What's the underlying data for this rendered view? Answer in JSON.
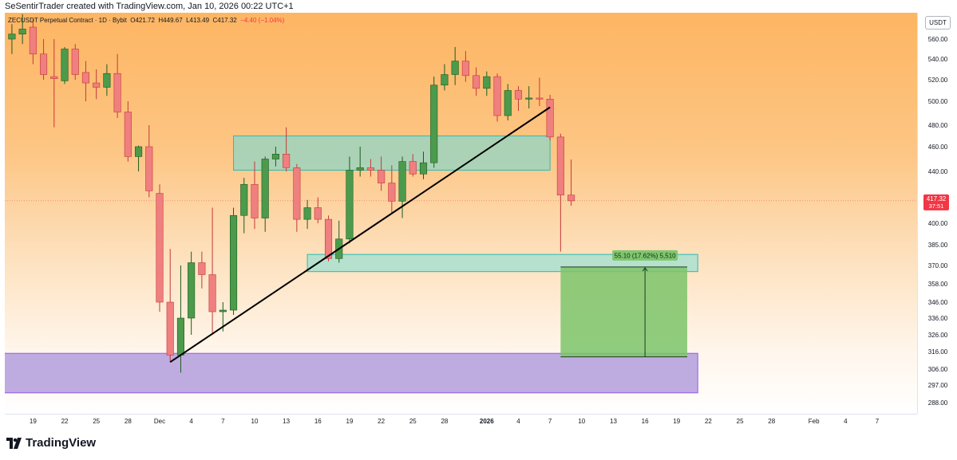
{
  "header": {
    "attribution": "SeSentirTrader created with TradingView.com, Jan 10, 2026 00:22 UTC+1"
  },
  "legend": {
    "symbol": "ZECUSDT Perpetual Contract · 1D · Bybit",
    "open": "O421.72",
    "high": "H449.67",
    "low": "L413.49",
    "close": "C417.32",
    "change": "−4.40 (−1.04%)"
  },
  "price_axis": {
    "unit": "USDT",
    "current_price": "417.32",
    "countdown": "37:51"
  },
  "measure_label": "55.10 (17.62%) 5,510",
  "footer": {
    "brand": "TradingView"
  },
  "colors": {
    "up": "#4c9a4c",
    "down": "#f07f7f",
    "zone_teal": "#63c9c1",
    "zone_purple": "#b49ce0",
    "target_green": "#7cc46a",
    "price_tag": "#f23645"
  },
  "chart_data": {
    "type": "candlestick",
    "symbol": "ZECUSDT Perpetual Contract",
    "interval": "1D",
    "exchange": "Bybit",
    "y_ticks": [
      560,
      540,
      520,
      500,
      480,
      460,
      440,
      400,
      385,
      370,
      358,
      346,
      336,
      326,
      316,
      306,
      297,
      288
    ],
    "x_ticks": [
      {
        "label": "19",
        "date": "2025-11-19"
      },
      {
        "label": "22",
        "date": "2025-11-22"
      },
      {
        "label": "25",
        "date": "2025-11-25"
      },
      {
        "label": "28",
        "date": "2025-11-28"
      },
      {
        "label": "Dec",
        "date": "2025-12-01"
      },
      {
        "label": "4",
        "date": "2025-12-04"
      },
      {
        "label": "7",
        "date": "2025-12-07"
      },
      {
        "label": "10",
        "date": "2025-12-10"
      },
      {
        "label": "13",
        "date": "2025-12-13"
      },
      {
        "label": "16",
        "date": "2025-12-16"
      },
      {
        "label": "19",
        "date": "2025-12-19"
      },
      {
        "label": "22",
        "date": "2025-12-22"
      },
      {
        "label": "25",
        "date": "2025-12-25"
      },
      {
        "label": "28",
        "date": "2025-12-28"
      },
      {
        "label": "2026",
        "date": "2026-01-01"
      },
      {
        "label": "4",
        "date": "2026-01-04"
      },
      {
        "label": "7",
        "date": "2026-01-07"
      },
      {
        "label": "10",
        "date": "2026-01-10"
      },
      {
        "label": "13",
        "date": "2026-01-13"
      },
      {
        "label": "16",
        "date": "2026-01-16"
      },
      {
        "label": "19",
        "date": "2026-01-19"
      },
      {
        "label": "22",
        "date": "2026-01-22"
      },
      {
        "label": "25",
        "date": "2026-01-25"
      },
      {
        "label": "28",
        "date": "2026-01-28"
      },
      {
        "label": "Feb",
        "date": "2026-02-01"
      },
      {
        "label": "4",
        "date": "2026-02-04"
      },
      {
        "label": "7",
        "date": "2026-02-07"
      }
    ],
    "candles": [
      {
        "date": "2025-11-17",
        "o": 560,
        "h": 575,
        "l": 545,
        "c": 565
      },
      {
        "date": "2025-11-18",
        "o": 565,
        "h": 585,
        "l": 555,
        "c": 570
      },
      {
        "date": "2025-11-19",
        "o": 572,
        "h": 580,
        "l": 535,
        "c": 545
      },
      {
        "date": "2025-11-20",
        "o": 545,
        "h": 560,
        "l": 520,
        "c": 525
      },
      {
        "date": "2025-11-21",
        "o": 523,
        "h": 560,
        "l": 478,
        "c": 521
      },
      {
        "date": "2025-11-22",
        "o": 519,
        "h": 552,
        "l": 516,
        "c": 550
      },
      {
        "date": "2025-11-23",
        "o": 550,
        "h": 555,
        "l": 520,
        "c": 525
      },
      {
        "date": "2025-11-24",
        "o": 527,
        "h": 538,
        "l": 500,
        "c": 517
      },
      {
        "date": "2025-11-25",
        "o": 517,
        "h": 530,
        "l": 502,
        "c": 513
      },
      {
        "date": "2025-11-26",
        "o": 513,
        "h": 535,
        "l": 505,
        "c": 526
      },
      {
        "date": "2025-11-27",
        "o": 526,
        "h": 545,
        "l": 486,
        "c": 491
      },
      {
        "date": "2025-11-28",
        "o": 491,
        "h": 500,
        "l": 448,
        "c": 452
      },
      {
        "date": "2025-11-29",
        "o": 452,
        "h": 461,
        "l": 440,
        "c": 460
      },
      {
        "date": "2025-11-30",
        "o": 460,
        "h": 480,
        "l": 420,
        "c": 425
      },
      {
        "date": "2025-12-01",
        "o": 423,
        "h": 430,
        "l": 340,
        "c": 346
      },
      {
        "date": "2025-12-02",
        "o": 346,
        "h": 382,
        "l": 310,
        "c": 314
      },
      {
        "date": "2025-12-03",
        "o": 314,
        "h": 370,
        "l": 304,
        "c": 336
      },
      {
        "date": "2025-12-04",
        "o": 336,
        "h": 380,
        "l": 326,
        "c": 372
      },
      {
        "date": "2025-12-05",
        "o": 372,
        "h": 380,
        "l": 355,
        "c": 364
      },
      {
        "date": "2025-12-06",
        "o": 364,
        "h": 412,
        "l": 326,
        "c": 340
      },
      {
        "date": "2025-12-07",
        "o": 340,
        "h": 346,
        "l": 328,
        "c": 341
      },
      {
        "date": "2025-12-08",
        "o": 341,
        "h": 412,
        "l": 338,
        "c": 406
      },
      {
        "date": "2025-12-09",
        "o": 406,
        "h": 435,
        "l": 393,
        "c": 430
      },
      {
        "date": "2025-12-10",
        "o": 430,
        "h": 448,
        "l": 396,
        "c": 404
      },
      {
        "date": "2025-12-11",
        "o": 404,
        "h": 452,
        "l": 394,
        "c": 450
      },
      {
        "date": "2025-12-12",
        "o": 450,
        "h": 460,
        "l": 444,
        "c": 454
      },
      {
        "date": "2025-12-13",
        "o": 454,
        "h": 478,
        "l": 440,
        "c": 443
      },
      {
        "date": "2025-12-14",
        "o": 443,
        "h": 446,
        "l": 394,
        "c": 403
      },
      {
        "date": "2025-12-15",
        "o": 403,
        "h": 418,
        "l": 396,
        "c": 412
      },
      {
        "date": "2025-12-16",
        "o": 412,
        "h": 420,
        "l": 400,
        "c": 403
      },
      {
        "date": "2025-12-17",
        "o": 403,
        "h": 406,
        "l": 373,
        "c": 375
      },
      {
        "date": "2025-12-18",
        "o": 375,
        "h": 402,
        "l": 372,
        "c": 389
      },
      {
        "date": "2025-12-19",
        "o": 389,
        "h": 452,
        "l": 386,
        "c": 441
      },
      {
        "date": "2025-12-20",
        "o": 441,
        "h": 460,
        "l": 436,
        "c": 443
      },
      {
        "date": "2025-12-21",
        "o": 443,
        "h": 450,
        "l": 436,
        "c": 441
      },
      {
        "date": "2025-12-22",
        "o": 441,
        "h": 452,
        "l": 425,
        "c": 431
      },
      {
        "date": "2025-12-23",
        "o": 431,
        "h": 445,
        "l": 408,
        "c": 417
      },
      {
        "date": "2025-12-24",
        "o": 417,
        "h": 452,
        "l": 404,
        "c": 448
      },
      {
        "date": "2025-12-25",
        "o": 448,
        "h": 454,
        "l": 436,
        "c": 438
      },
      {
        "date": "2025-12-26",
        "o": 438,
        "h": 456,
        "l": 434,
        "c": 447
      },
      {
        "date": "2025-12-27",
        "o": 447,
        "h": 523,
        "l": 443,
        "c": 515
      },
      {
        "date": "2025-12-28",
        "o": 515,
        "h": 535,
        "l": 510,
        "c": 525
      },
      {
        "date": "2025-12-29",
        "o": 525,
        "h": 552,
        "l": 515,
        "c": 538
      },
      {
        "date": "2025-12-30",
        "o": 538,
        "h": 548,
        "l": 518,
        "c": 524
      },
      {
        "date": "2025-12-31",
        "o": 524,
        "h": 532,
        "l": 505,
        "c": 512
      },
      {
        "date": "2026-01-01",
        "o": 512,
        "h": 528,
        "l": 505,
        "c": 523
      },
      {
        "date": "2026-01-02",
        "o": 523,
        "h": 526,
        "l": 483,
        "c": 488
      },
      {
        "date": "2026-01-03",
        "o": 488,
        "h": 516,
        "l": 484,
        "c": 510
      },
      {
        "date": "2026-01-04",
        "o": 510,
        "h": 514,
        "l": 492,
        "c": 502
      },
      {
        "date": "2026-01-05",
        "o": 502,
        "h": 514,
        "l": 494,
        "c": 503
      },
      {
        "date": "2026-01-06",
        "o": 503,
        "h": 522,
        "l": 496,
        "c": 502
      },
      {
        "date": "2026-01-07",
        "o": 502,
        "h": 506,
        "l": 466,
        "c": 469
      },
      {
        "date": "2026-01-08",
        "o": 469,
        "h": 472,
        "l": 380,
        "c": 421.72
      },
      {
        "date": "2026-01-09",
        "o": 421.72,
        "h": 449.67,
        "l": 413.49,
        "c": 417.32
      }
    ],
    "trendline": [
      {
        "date": "2025-12-02",
        "price": 310
      },
      {
        "date": "2026-01-07",
        "price": 495
      }
    ],
    "zones": [
      {
        "name": "resistance-zone",
        "from": "2025-12-08",
        "to": "2026-01-07",
        "top": 470,
        "bottom": 441
      },
      {
        "name": "support-zone",
        "from": "2025-12-15",
        "to": "2026-01-21",
        "top": 378,
        "bottom": 366
      },
      {
        "name": "demand-zone",
        "from": "2025-11-15",
        "to": "2026-01-21",
        "top": 315,
        "bottom": 293
      }
    ],
    "target_box": {
      "from": "2026-01-08",
      "to": "2026-01-20",
      "top": 369,
      "bottom": 313,
      "arrow_date": "2026-01-16"
    },
    "current_price": 417.32
  }
}
